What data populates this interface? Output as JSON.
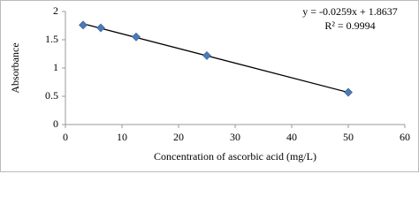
{
  "chart_data": {
    "type": "scatter",
    "x_label": "Concentration of ascorbic acid (mg/L)",
    "y_label": "Absorbance",
    "series": [
      {
        "color": "#4a7ab8",
        "x": [
          3.125,
          6.25,
          12.5,
          25,
          50
        ],
        "values": [
          1.76,
          1.71,
          1.55,
          1.22,
          0.57
        ]
      }
    ],
    "trendline": {
      "slope": -0.0259,
      "intercept": 1.8637,
      "color": "#000000"
    },
    "annotations": [
      "y = -0.0259x + 1.8637",
      "R² = 0.9994"
    ],
    "xlim": [
      0,
      60
    ],
    "xticks": [
      0,
      10,
      20,
      30,
      40,
      50,
      60
    ],
    "ylim": [
      0,
      2
    ],
    "yticks": [
      0,
      0.5,
      1,
      1.5,
      2
    ],
    "grid": false
  }
}
